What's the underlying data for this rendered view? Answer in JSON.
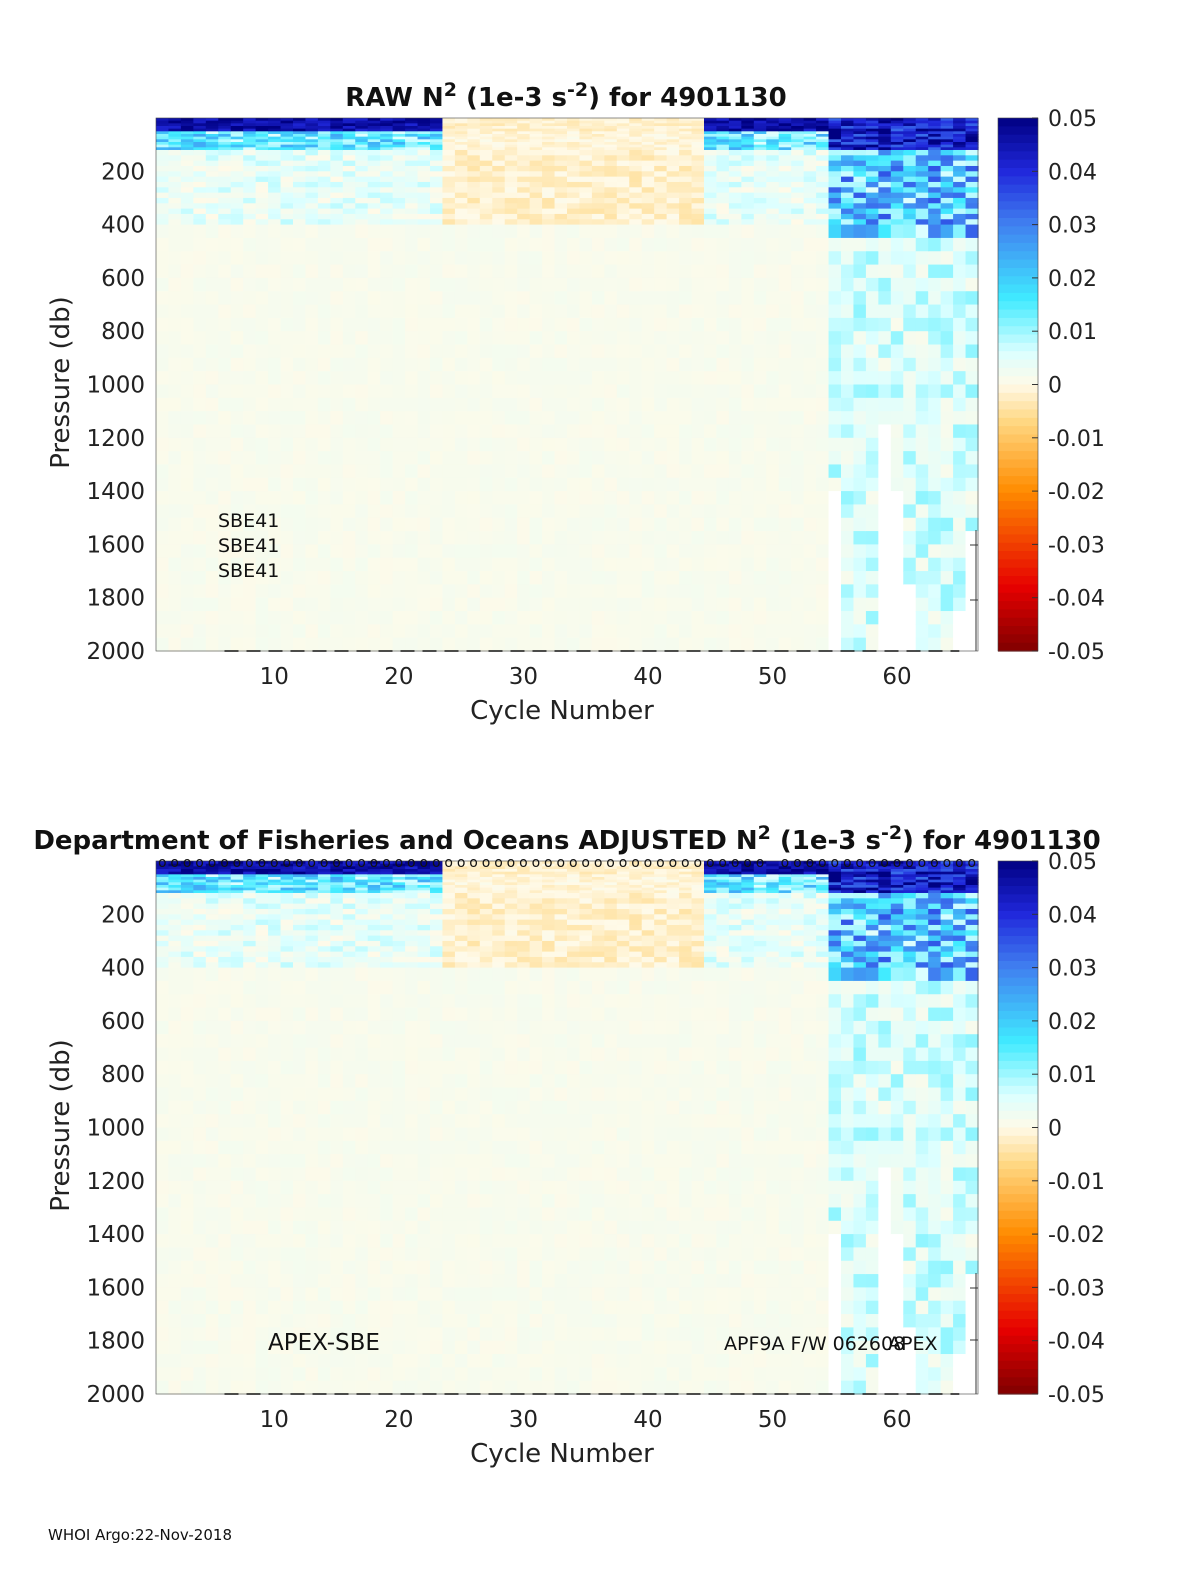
{
  "chart_data": [
    {
      "type": "heatmap",
      "title_prefix": "RAW N",
      "title_sup1": "2",
      "title_mid": " (1e-3 s",
      "title_sup2": "-2",
      "title_suffix": ") for 4901130",
      "xlabel": "Cycle Number",
      "ylabel": "Pressure (db)",
      "x_range": [
        1,
        66
      ],
      "y_range": [
        0,
        2000
      ],
      "x_ticks": [
        10,
        20,
        30,
        40,
        50,
        60
      ],
      "y_ticks": [
        200,
        400,
        600,
        800,
        1000,
        1200,
        1400,
        1600,
        1800,
        2000
      ],
      "colorbar_range": [
        -0.05,
        0.05
      ],
      "colorbar_ticks": [
        0.05,
        0.04,
        0.03,
        0.02,
        0.01,
        0,
        -0.01,
        -0.02,
        -0.03,
        -0.04,
        -0.05
      ],
      "colorbar_tick_labels": [
        "0.05",
        "0.04",
        "0.03",
        "0.02",
        "0.01",
        "0",
        "-0.01",
        "-0.02",
        "-0.03",
        "-0.04",
        "-0.05"
      ],
      "annotations": [
        "SBE41",
        "SBE41",
        "SBE41"
      ],
      "regions": [
        {
          "cycles": [
            1,
            54
          ],
          "pressure": [
            0,
            400
          ],
          "description": "strong positive N2 near surface (0-80 db), moderate 80-400 db, weak below",
          "surface_value": 0.045
        },
        {
          "cycles": [
            24,
            44
          ],
          "pressure": [
            0,
            300
          ],
          "description": "near-zero / slightly negative values",
          "value": -0.003
        },
        {
          "cycles": [
            55,
            66
          ],
          "pressure": [
            0,
            400
          ],
          "value": 0.04
        },
        {
          "cycles": [
            1,
            54
          ],
          "pressure": [
            400,
            2000
          ],
          "value": 0.001
        },
        {
          "cycles": [
            54,
            66
          ],
          "pressure": [
            400,
            2000
          ],
          "value": 0.007
        }
      ],
      "missing_data": [
        {
          "cycle": 55,
          "pressure": [
            1400,
            2000
          ]
        },
        {
          "cycle": 59,
          "pressure": [
            1150,
            2000
          ]
        },
        {
          "cycle": 60,
          "pressure": [
            1400,
            2000
          ]
        },
        {
          "cycle": 61,
          "pressure": [
            1750,
            2000
          ]
        },
        {
          "cycle": 65,
          "pressure": [
            1850,
            2000
          ]
        },
        {
          "cycle": 66,
          "pressure": [
            1550,
            2000
          ]
        }
      ]
    },
    {
      "type": "heatmap",
      "title_prefix": "Department of Fisheries and Oceans  ADJUSTED N",
      "title_sup1": "2",
      "title_mid": " (1e-3 s",
      "title_sup2": "-2",
      "title_suffix": ") for 4901130",
      "xlabel": "Cycle Number",
      "ylabel": "Pressure (db)",
      "x_range": [
        1,
        66
      ],
      "y_range": [
        0,
        2000
      ],
      "x_ticks": [
        10,
        20,
        30,
        40,
        50,
        60
      ],
      "y_ticks": [
        200,
        400,
        600,
        800,
        1000,
        1200,
        1400,
        1600,
        1800,
        2000
      ],
      "colorbar_range": [
        -0.05,
        0.05
      ],
      "colorbar_ticks": [
        0.05,
        0.04,
        0.03,
        0.02,
        0.01,
        0,
        -0.01,
        -0.02,
        -0.03,
        -0.04,
        -0.05
      ],
      "colorbar_tick_labels": [
        "0.05",
        "0.04",
        "0.03",
        "0.02",
        "0.01",
        "0",
        "-0.01",
        "-0.02",
        "-0.03",
        "-0.04",
        "-0.05"
      ],
      "annotations": [
        "APEX-SBE",
        "APF9A F/W 062608",
        "APEX"
      ],
      "qc_marker": "o",
      "regions": [
        {
          "cycles": [
            1,
            54
          ],
          "pressure": [
            0,
            400
          ],
          "description": "strong positive N2 near surface (0-80 db), moderate 80-400 db, weak below",
          "surface_value": 0.045
        },
        {
          "cycles": [
            24,
            44
          ],
          "pressure": [
            0,
            300
          ],
          "description": "near-zero / slightly negative values",
          "value": -0.003
        },
        {
          "cycles": [
            55,
            66
          ],
          "pressure": [
            0,
            400
          ],
          "value": 0.04
        },
        {
          "cycles": [
            1,
            54
          ],
          "pressure": [
            400,
            2000
          ],
          "value": 0.001
        },
        {
          "cycles": [
            54,
            66
          ],
          "pressure": [
            400,
            2000
          ],
          "value": 0.007
        }
      ],
      "missing_data": [
        {
          "cycle": 55,
          "pressure": [
            1400,
            2000
          ]
        },
        {
          "cycle": 59,
          "pressure": [
            1150,
            2000
          ]
        },
        {
          "cycle": 60,
          "pressure": [
            1400,
            2000
          ]
        },
        {
          "cycle": 61,
          "pressure": [
            1750,
            2000
          ]
        },
        {
          "cycle": 65,
          "pressure": [
            1850,
            2000
          ]
        },
        {
          "cycle": 66,
          "pressure": [
            1550,
            2000
          ]
        }
      ]
    }
  ],
  "footer": "WHOI Argo:22-Nov-2018"
}
